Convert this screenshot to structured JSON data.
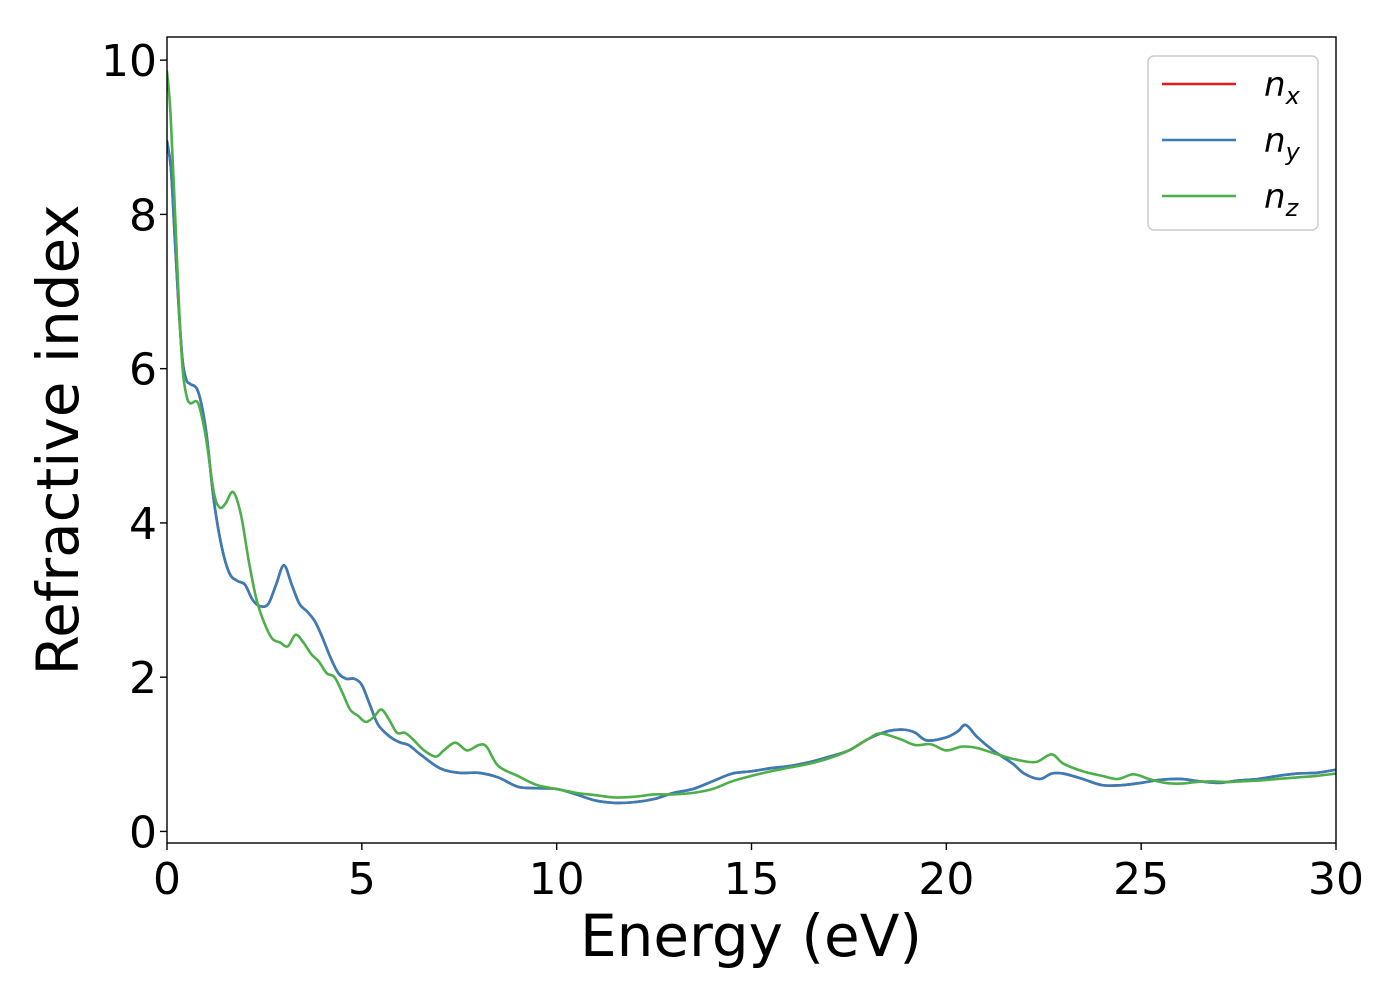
{
  "chart_data": {
    "type": "line",
    "xlabel": "Energy (eV)",
    "ylabel": "Refractive index",
    "xlim": [
      0,
      30
    ],
    "ylim": [
      -0.15,
      10.3
    ],
    "xticks": [
      0,
      5,
      10,
      15,
      20,
      25,
      30
    ],
    "yticks": [
      0,
      2,
      4,
      6,
      8,
      10
    ],
    "grid": false,
    "legend_position": "top-right",
    "series": [
      {
        "name": "n",
        "subscript": "x",
        "color": "#e41a1c",
        "x": [
          0,
          0.1,
          0.2,
          0.3,
          0.4,
          0.5,
          0.6,
          0.8,
          1.0,
          1.2,
          1.4,
          1.6,
          1.8,
          2.0,
          2.2,
          2.4,
          2.6,
          2.8,
          3.0,
          3.2,
          3.4,
          3.6,
          3.8,
          4.0,
          4.2,
          4.4,
          4.6,
          4.8,
          5.0,
          5.2,
          5.4,
          5.6,
          5.8,
          6.0,
          6.2,
          6.5,
          7.0,
          7.5,
          8.0,
          8.5,
          9.0,
          9.5,
          10.0,
          10.5,
          11.0,
          11.5,
          12.0,
          12.5,
          13.0,
          13.5,
          14.0,
          14.5,
          15.0,
          15.5,
          16.0,
          16.5,
          17.0,
          17.5,
          18.0,
          18.5,
          18.9,
          19.2,
          19.5,
          20.0,
          20.3,
          20.5,
          20.8,
          21.2,
          21.7,
          22.0,
          22.4,
          22.7,
          23.0,
          23.5,
          24.0,
          24.5,
          25.0,
          25.5,
          26.0,
          26.5,
          27.0,
          27.5,
          28.0,
          28.5,
          29.0,
          29.5,
          30.0
        ],
        "values": [
          8.95,
          8.6,
          7.7,
          6.8,
          6.1,
          5.85,
          5.8,
          5.7,
          5.2,
          4.3,
          3.7,
          3.35,
          3.25,
          3.2,
          3.0,
          2.92,
          2.95,
          3.2,
          3.45,
          3.2,
          2.95,
          2.85,
          2.72,
          2.5,
          2.25,
          2.05,
          1.98,
          1.98,
          1.9,
          1.65,
          1.4,
          1.28,
          1.2,
          1.15,
          1.12,
          1.0,
          0.82,
          0.76,
          0.76,
          0.7,
          0.58,
          0.56,
          0.55,
          0.48,
          0.4,
          0.37,
          0.38,
          0.42,
          0.5,
          0.55,
          0.65,
          0.75,
          0.78,
          0.82,
          0.85,
          0.9,
          0.97,
          1.05,
          1.2,
          1.3,
          1.32,
          1.28,
          1.18,
          1.22,
          1.3,
          1.38,
          1.22,
          1.05,
          0.88,
          0.75,
          0.68,
          0.75,
          0.75,
          0.68,
          0.6,
          0.6,
          0.63,
          0.67,
          0.68,
          0.65,
          0.63,
          0.66,
          0.68,
          0.72,
          0.75,
          0.76,
          0.8
        ]
      },
      {
        "name": "n",
        "subscript": "y",
        "color": "#377eb8",
        "x": [
          0,
          0.1,
          0.2,
          0.3,
          0.4,
          0.5,
          0.6,
          0.8,
          1.0,
          1.2,
          1.4,
          1.6,
          1.8,
          2.0,
          2.2,
          2.4,
          2.6,
          2.8,
          3.0,
          3.2,
          3.4,
          3.6,
          3.8,
          4.0,
          4.2,
          4.4,
          4.6,
          4.8,
          5.0,
          5.2,
          5.4,
          5.6,
          5.8,
          6.0,
          6.2,
          6.5,
          7.0,
          7.5,
          8.0,
          8.5,
          9.0,
          9.5,
          10.0,
          10.5,
          11.0,
          11.5,
          12.0,
          12.5,
          13.0,
          13.5,
          14.0,
          14.5,
          15.0,
          15.5,
          16.0,
          16.5,
          17.0,
          17.5,
          18.0,
          18.5,
          18.9,
          19.2,
          19.5,
          20.0,
          20.3,
          20.5,
          20.8,
          21.2,
          21.7,
          22.0,
          22.4,
          22.7,
          23.0,
          23.5,
          24.0,
          24.5,
          25.0,
          25.5,
          26.0,
          26.5,
          27.0,
          27.5,
          28.0,
          28.5,
          29.0,
          29.5,
          30.0
        ],
        "values": [
          8.95,
          8.6,
          7.7,
          6.8,
          6.1,
          5.85,
          5.8,
          5.7,
          5.2,
          4.3,
          3.7,
          3.35,
          3.25,
          3.2,
          3.0,
          2.92,
          2.95,
          3.2,
          3.45,
          3.2,
          2.95,
          2.85,
          2.72,
          2.5,
          2.25,
          2.05,
          1.98,
          1.98,
          1.9,
          1.65,
          1.4,
          1.28,
          1.2,
          1.15,
          1.12,
          1.0,
          0.82,
          0.76,
          0.76,
          0.7,
          0.58,
          0.56,
          0.55,
          0.48,
          0.4,
          0.37,
          0.38,
          0.42,
          0.5,
          0.55,
          0.65,
          0.75,
          0.78,
          0.82,
          0.85,
          0.9,
          0.97,
          1.05,
          1.2,
          1.3,
          1.32,
          1.28,
          1.18,
          1.22,
          1.3,
          1.38,
          1.22,
          1.05,
          0.88,
          0.75,
          0.68,
          0.75,
          0.75,
          0.68,
          0.6,
          0.6,
          0.63,
          0.67,
          0.68,
          0.65,
          0.63,
          0.66,
          0.68,
          0.72,
          0.75,
          0.76,
          0.8
        ]
      },
      {
        "name": "n",
        "subscript": "z",
        "color": "#4daf4a",
        "x": [
          0,
          0.05,
          0.1,
          0.2,
          0.3,
          0.4,
          0.5,
          0.6,
          0.8,
          1.0,
          1.2,
          1.35,
          1.5,
          1.7,
          1.9,
          2.1,
          2.3,
          2.5,
          2.7,
          2.9,
          3.1,
          3.3,
          3.5,
          3.7,
          3.9,
          4.1,
          4.3,
          4.5,
          4.7,
          4.9,
          5.1,
          5.3,
          5.5,
          5.7,
          5.9,
          6.1,
          6.3,
          6.6,
          6.9,
          7.1,
          7.4,
          7.7,
          8.0,
          8.2,
          8.5,
          9.0,
          9.5,
          10.0,
          10.5,
          11.0,
          11.5,
          12.0,
          12.5,
          13.0,
          13.5,
          14.0,
          14.5,
          15.0,
          15.5,
          16.0,
          16.5,
          17.0,
          17.5,
          18.0,
          18.3,
          18.8,
          19.2,
          19.6,
          20.0,
          20.4,
          20.8,
          21.3,
          21.8,
          22.3,
          22.7,
          23.0,
          23.5,
          24.0,
          24.4,
          24.8,
          25.2,
          25.6,
          26.0,
          26.4,
          26.8,
          27.2,
          27.6,
          28.0,
          28.5,
          29.0,
          29.5,
          30.0
        ],
        "values": [
          9.85,
          9.6,
          9.2,
          8.1,
          6.9,
          6.0,
          5.65,
          5.55,
          5.55,
          5.1,
          4.4,
          4.2,
          4.25,
          4.4,
          4.1,
          3.5,
          3.0,
          2.7,
          2.5,
          2.45,
          2.4,
          2.55,
          2.45,
          2.3,
          2.2,
          2.05,
          2.0,
          1.8,
          1.58,
          1.5,
          1.42,
          1.48,
          1.58,
          1.45,
          1.28,
          1.28,
          1.2,
          1.05,
          0.97,
          1.05,
          1.15,
          1.05,
          1.12,
          1.1,
          0.85,
          0.72,
          0.6,
          0.55,
          0.5,
          0.47,
          0.44,
          0.45,
          0.48,
          0.48,
          0.5,
          0.55,
          0.65,
          0.72,
          0.78,
          0.83,
          0.88,
          0.95,
          1.05,
          1.2,
          1.27,
          1.2,
          1.12,
          1.13,
          1.05,
          1.1,
          1.08,
          1.0,
          0.93,
          0.9,
          1.0,
          0.88,
          0.78,
          0.72,
          0.68,
          0.74,
          0.68,
          0.63,
          0.62,
          0.64,
          0.65,
          0.64,
          0.65,
          0.66,
          0.68,
          0.7,
          0.72,
          0.75
        ]
      }
    ]
  }
}
